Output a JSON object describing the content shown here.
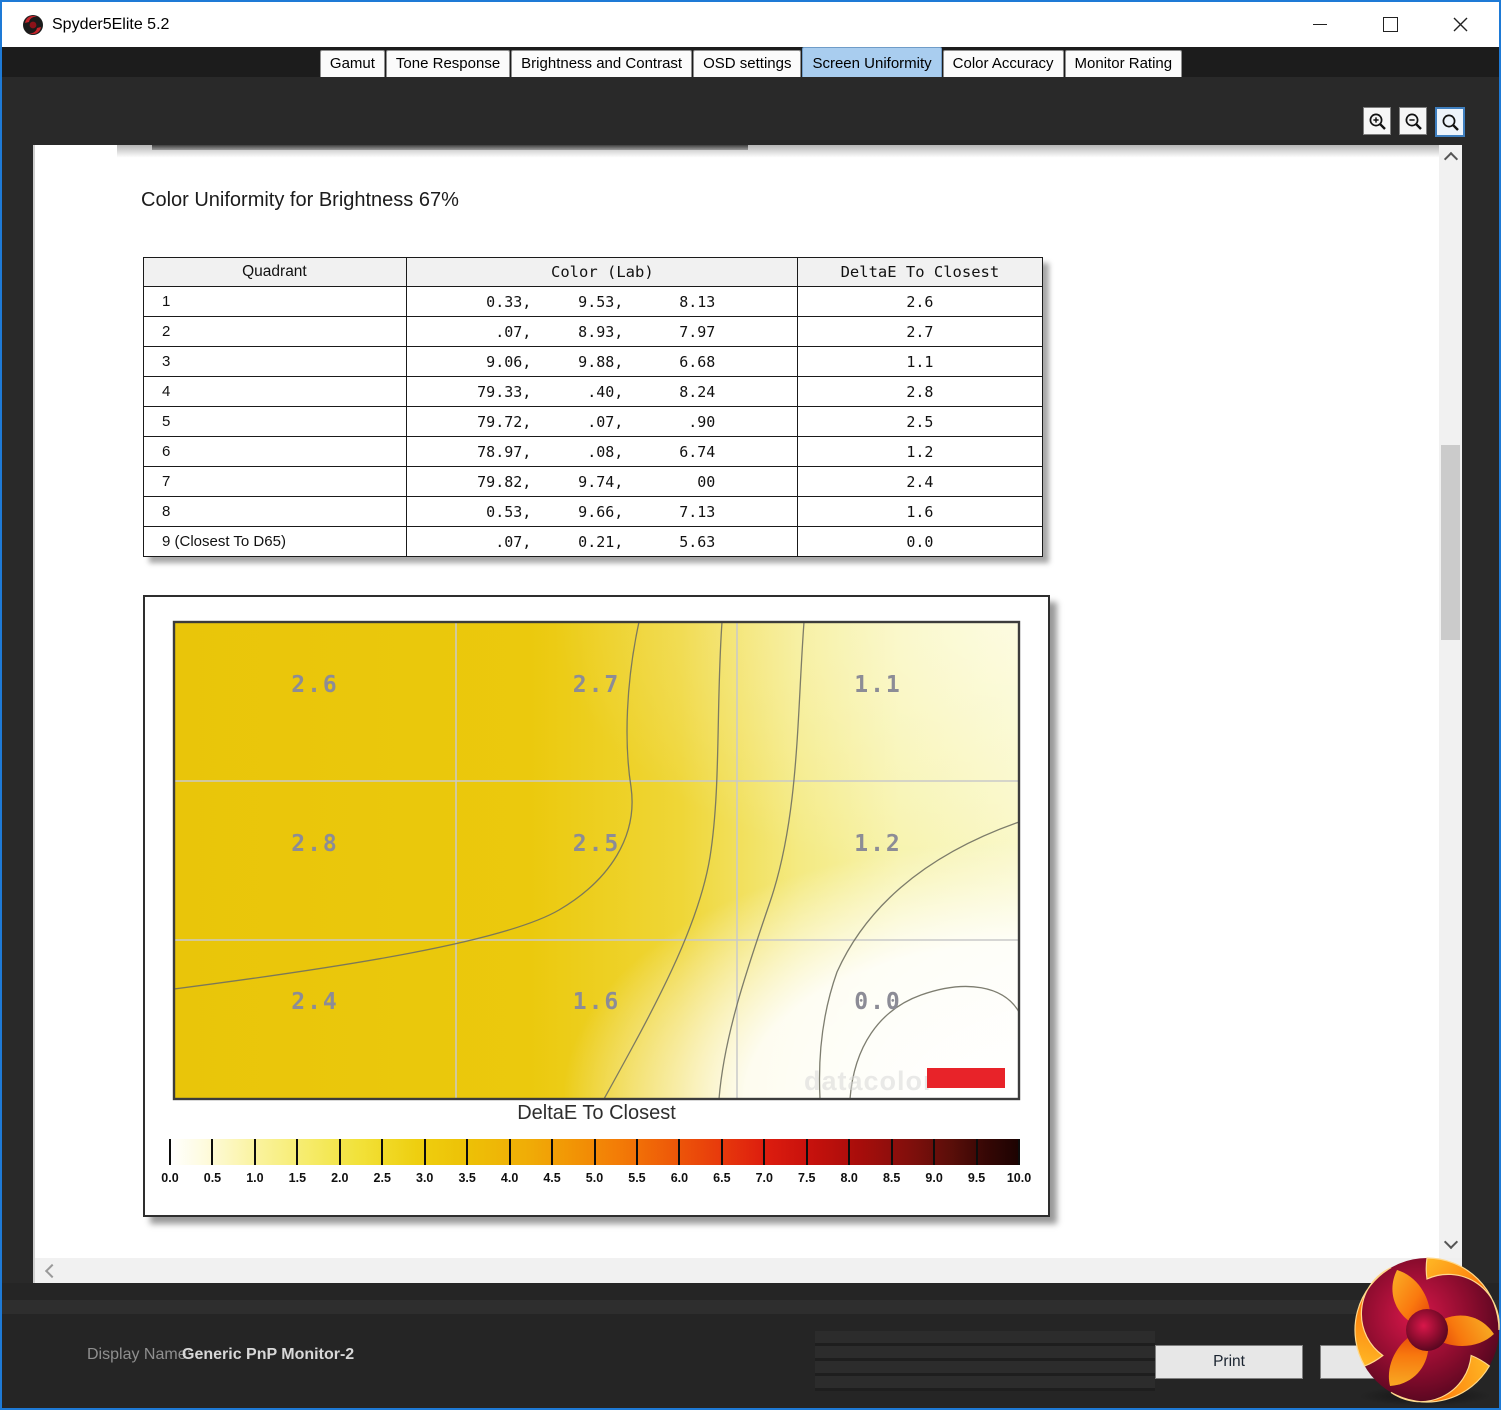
{
  "window": {
    "title": "Spyder5Elite 5.2",
    "controls": [
      "minimize",
      "maximize",
      "close"
    ]
  },
  "tabs": {
    "items": [
      "Gamut",
      "Tone Response",
      "Brightness and Contrast",
      "OSD settings",
      "Screen Uniformity",
      "Color Accuracy",
      "Monitor Rating"
    ],
    "selected": "Screen Uniformity",
    "selected_index": 4
  },
  "toolbar": {
    "zoom_buttons": [
      "zoom-in",
      "zoom-out",
      "zoom-reset"
    ],
    "active_zoom": "zoom-reset"
  },
  "report": {
    "title": "Color Uniformity for Brightness 67%",
    "table": {
      "headers": [
        "Quadrant",
        "Color (Lab)",
        "DeltaE To Closest"
      ],
      "rows": [
        {
          "quadrant": "1",
          "lab": [
            "0.33,",
            "9.53,",
            "8.13"
          ],
          "delta_e": "2.6"
        },
        {
          "quadrant": "2",
          "lab": [
            ".07,",
            "8.93,",
            "7.97"
          ],
          "delta_e": "2.7"
        },
        {
          "quadrant": "3",
          "lab": [
            "9.06,",
            "9.88,",
            "6.68"
          ],
          "delta_e": "1.1"
        },
        {
          "quadrant": "4",
          "lab": [
            "79.33,",
            ".40,",
            "8.24"
          ],
          "delta_e": "2.8"
        },
        {
          "quadrant": "5",
          "lab": [
            "79.72,",
            ".07,",
            ".90"
          ],
          "delta_e": "2.5"
        },
        {
          "quadrant": "6",
          "lab": [
            "78.97,",
            ".08,",
            "6.74"
          ],
          "delta_e": "1.2"
        },
        {
          "quadrant": "7",
          "lab": [
            "79.82,",
            "9.74,",
            "00"
          ],
          "delta_e": "2.4"
        },
        {
          "quadrant": "8",
          "lab": [
            "0.53,",
            "9.66,",
            "7.13"
          ],
          "delta_e": "1.6"
        },
        {
          "quadrant": "9 (Closest To D65)",
          "lab": [
            ".07,",
            "0.21,",
            "5.63"
          ],
          "delta_e": "0.0"
        }
      ]
    }
  },
  "chart_data": {
    "type": "heatmap",
    "title": "Color Uniformity for Brightness 67%",
    "grid_rows": 3,
    "grid_cols": 3,
    "values": [
      [
        2.6,
        2.7,
        1.1
      ],
      [
        2.8,
        2.5,
        1.2
      ],
      [
        2.4,
        1.6,
        0.0
      ]
    ],
    "colorbar": {
      "label": "DeltaE To Closest",
      "min": 0.0,
      "max": 10.0,
      "step": 0.5,
      "tick_labels": [
        "0.0",
        "0.5",
        "1.0",
        "1.5",
        "2.0",
        "2.5",
        "3.0",
        "3.5",
        "4.0",
        "4.5",
        "5.0",
        "5.5",
        "6.0",
        "6.5",
        "7.0",
        "7.5",
        "8.0",
        "8.5",
        "9.0",
        "9.5",
        "10.0"
      ]
    },
    "watermark": "datacolor",
    "legend_position": "bottom",
    "grid_on": true
  },
  "footer": {
    "display_name_label": "Display Name:",
    "display_name_value": "Generic PnP Monitor-2",
    "print_label": "Print"
  },
  "icons": {
    "app": "spider-logo-icon",
    "zoom_in": "zoom-in-icon",
    "zoom_out": "zoom-out-icon",
    "zoom_reset": "zoom-reset-icon",
    "brand": "datacolor-swirl-logo"
  },
  "colors": {
    "selected_tab": "#A9CDEF",
    "window_border": "#1E7AD6",
    "marker_red": "#E82329",
    "contour_gold": "#E9C50A",
    "contour_pale": "#F9F7C4"
  }
}
